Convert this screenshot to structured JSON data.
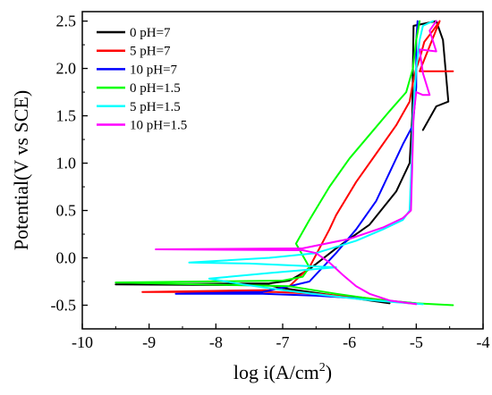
{
  "chart_data": {
    "type": "line",
    "xlabel": "log i(A/cm",
    "xlabel_sup": "2",
    "xlabel_close": ")",
    "ylabel": "Potential(V vs SCE)",
    "xlim": [
      -10,
      -4
    ],
    "ylim": [
      -0.75,
      2.6
    ],
    "xticks": [
      -10,
      -9,
      -8,
      -7,
      -6,
      -5,
      -4
    ],
    "yticks": [
      -0.5,
      0.0,
      0.5,
      1.0,
      1.5,
      2.0,
      2.5
    ],
    "ytick_labels": [
      "-0.5",
      "0.0",
      "0.5",
      "1.0",
      "1.5",
      "2.0",
      "2.5"
    ],
    "legend_position": "top-left",
    "grid": false,
    "series": [
      {
        "name": "0 pH=7",
        "color": "#000000",
        "points": [
          [
            -5.4,
            -0.48
          ],
          [
            -6.0,
            -0.42
          ],
          [
            -6.6,
            -0.36
          ],
          [
            -7.0,
            -0.32
          ],
          [
            -7.2,
            -0.29
          ],
          [
            -9.5,
            -0.28
          ],
          [
            -7.2,
            -0.27
          ],
          [
            -6.9,
            -0.24
          ],
          [
            -6.6,
            -0.12
          ],
          [
            -6.2,
            0.1
          ],
          [
            -5.7,
            0.35
          ],
          [
            -5.3,
            0.7
          ],
          [
            -5.1,
            1.0
          ],
          [
            -5.06,
            1.5
          ],
          [
            -5.05,
            2.0
          ],
          [
            -5.04,
            2.45
          ],
          [
            -4.7,
            2.5
          ],
          [
            -4.6,
            2.3
          ],
          [
            -4.55,
            1.9
          ],
          [
            -4.52,
            1.65
          ],
          [
            -4.7,
            1.6
          ],
          [
            -4.9,
            1.35
          ]
        ]
      },
      {
        "name": "5 pH=7",
        "color": "#ff0000",
        "points": [
          [
            -5.1,
            -0.48
          ],
          [
            -5.8,
            -0.42
          ],
          [
            -6.5,
            -0.38
          ],
          [
            -7.1,
            -0.36
          ],
          [
            -9.1,
            -0.36
          ],
          [
            -7.2,
            -0.34
          ],
          [
            -6.9,
            -0.3
          ],
          [
            -6.6,
            -0.1
          ],
          [
            -6.3,
            0.3
          ],
          [
            -6.2,
            0.45
          ],
          [
            -5.9,
            0.8
          ],
          [
            -5.6,
            1.1
          ],
          [
            -5.3,
            1.4
          ],
          [
            -5.1,
            1.65
          ],
          [
            -5.05,
            1.85
          ],
          [
            -5.0,
            2.0
          ],
          [
            -4.95,
            2.1
          ],
          [
            -4.88,
            2.28
          ],
          [
            -4.75,
            2.4
          ],
          [
            -4.65,
            2.5
          ],
          [
            -4.95,
            1.97
          ],
          [
            -4.45,
            1.97
          ]
        ]
      },
      {
        "name": "10 pH=7",
        "color": "#0000ff",
        "points": [
          [
            -5.0,
            -0.48
          ],
          [
            -5.8,
            -0.43
          ],
          [
            -6.5,
            -0.4
          ],
          [
            -7.3,
            -0.38
          ],
          [
            -8.6,
            -0.38
          ],
          [
            -7.3,
            -0.36
          ],
          [
            -6.9,
            -0.3
          ],
          [
            -6.6,
            -0.25
          ],
          [
            -6.4,
            -0.1
          ],
          [
            -6.2,
            0.05
          ],
          [
            -5.9,
            0.3
          ],
          [
            -5.6,
            0.6
          ],
          [
            -5.4,
            0.9
          ],
          [
            -5.2,
            1.2
          ],
          [
            -5.05,
            1.4
          ],
          [
            -5.0,
            1.8
          ],
          [
            -5.0,
            2.3
          ],
          [
            -4.98,
            2.5
          ]
        ]
      },
      {
        "name": "0 pH=1.5",
        "color": "#00ff00",
        "points": [
          [
            -4.45,
            -0.5
          ],
          [
            -5.0,
            -0.48
          ],
          [
            -5.6,
            -0.44
          ],
          [
            -6.2,
            -0.38
          ],
          [
            -6.9,
            -0.3
          ],
          [
            -9.5,
            -0.26
          ],
          [
            -7.0,
            -0.24
          ],
          [
            -6.7,
            -0.2
          ],
          [
            -6.6,
            -0.1
          ],
          [
            -6.8,
            0.15
          ],
          [
            -6.6,
            0.4
          ],
          [
            -6.3,
            0.75
          ],
          [
            -6.0,
            1.05
          ],
          [
            -5.7,
            1.3
          ],
          [
            -5.4,
            1.55
          ],
          [
            -5.15,
            1.75
          ],
          [
            -5.05,
            2.0
          ],
          [
            -5.0,
            2.3
          ],
          [
            -4.95,
            2.5
          ]
        ]
      },
      {
        "name": "5 pH=1.5",
        "color": "#00ffff",
        "points": [
          [
            -4.9,
            -0.49
          ],
          [
            -5.3,
            -0.47
          ],
          [
            -5.8,
            -0.44
          ],
          [
            -6.3,
            -0.4
          ],
          [
            -6.9,
            -0.35
          ],
          [
            -7.6,
            -0.28
          ],
          [
            -8.1,
            -0.22
          ],
          [
            -7.2,
            -0.16
          ],
          [
            -6.2,
            -0.1
          ],
          [
            -7.5,
            -0.06
          ],
          [
            -8.4,
            -0.05
          ],
          [
            -7.2,
            0.0
          ],
          [
            -6.5,
            0.05
          ],
          [
            -5.9,
            0.18
          ],
          [
            -5.5,
            0.3
          ],
          [
            -5.2,
            0.4
          ],
          [
            -5.1,
            0.5
          ],
          [
            -5.07,
            1.0
          ],
          [
            -5.05,
            1.5
          ],
          [
            -5.0,
            2.0
          ],
          [
            -4.95,
            2.3
          ],
          [
            -4.9,
            2.45
          ],
          [
            -4.75,
            2.5
          ]
        ]
      },
      {
        "name": "10 pH=1.5",
        "color": "#ff00ff",
        "points": [
          [
            -5.0,
            -0.49
          ],
          [
            -5.4,
            -0.45
          ],
          [
            -5.7,
            -0.38
          ],
          [
            -5.9,
            -0.3
          ],
          [
            -6.1,
            -0.18
          ],
          [
            -6.3,
            -0.05
          ],
          [
            -6.5,
            0.05
          ],
          [
            -6.7,
            0.08
          ],
          [
            -8.9,
            0.09
          ],
          [
            -6.7,
            0.1
          ],
          [
            -6.0,
            0.2
          ],
          [
            -5.5,
            0.32
          ],
          [
            -5.2,
            0.42
          ],
          [
            -5.08,
            0.5
          ],
          [
            -5.06,
            1.0
          ],
          [
            -5.04,
            1.5
          ],
          [
            -5.0,
            1.75
          ],
          [
            -4.9,
            1.72
          ],
          [
            -4.8,
            1.72
          ],
          [
            -4.9,
            1.95
          ],
          [
            -4.95,
            2.2
          ],
          [
            -4.7,
            2.18
          ],
          [
            -4.8,
            2.4
          ],
          [
            -4.7,
            2.5
          ]
        ]
      }
    ]
  }
}
